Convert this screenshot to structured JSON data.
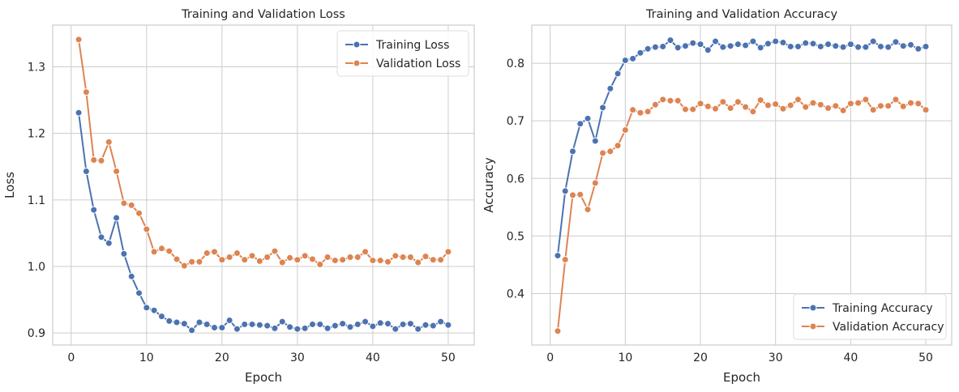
{
  "colors": {
    "training": "#4c72b0",
    "validation": "#dd8452",
    "grid": "#cccccc",
    "frame": "#cccccc"
  },
  "chart_data": [
    {
      "type": "line",
      "title": "Training and Validation Loss",
      "xlabel": "Epoch",
      "ylabel": "Loss",
      "xlim": [
        -2.45,
        53.45
      ],
      "ylim": [
        0.8819,
        1.3627
      ],
      "xticks": [
        0,
        10,
        20,
        30,
        40,
        50
      ],
      "yticks": [
        0.9,
        1.0,
        1.1,
        1.2,
        1.3
      ],
      "ytick_labels": [
        "0.9",
        "1.0",
        "1.1",
        "1.2",
        "1.3"
      ],
      "grid": true,
      "legend": "top-right",
      "x": [
        1,
        2,
        3,
        4,
        5,
        6,
        7,
        8,
        9,
        10,
        11,
        12,
        13,
        14,
        15,
        16,
        17,
        18,
        19,
        20,
        21,
        22,
        23,
        24,
        25,
        26,
        27,
        28,
        29,
        30,
        31,
        32,
        33,
        34,
        35,
        36,
        37,
        38,
        39,
        40,
        41,
        42,
        43,
        44,
        45,
        46,
        47,
        48,
        49,
        50
      ],
      "series": [
        {
          "name": "Training Loss",
          "values": [
            1.231,
            1.143,
            1.085,
            1.044,
            1.035,
            1.073,
            1.019,
            0.985,
            0.96,
            0.938,
            0.934,
            0.925,
            0.918,
            0.916,
            0.914,
            0.904,
            0.916,
            0.913,
            0.908,
            0.908,
            0.919,
            0.906,
            0.913,
            0.913,
            0.912,
            0.911,
            0.907,
            0.917,
            0.909,
            0.906,
            0.907,
            0.913,
            0.913,
            0.907,
            0.911,
            0.914,
            0.909,
            0.913,
            0.917,
            0.91,
            0.915,
            0.914,
            0.906,
            0.913,
            0.914,
            0.906,
            0.912,
            0.911,
            0.917,
            0.912
          ]
        },
        {
          "name": "Validation Loss",
          "values": [
            1.341,
            1.262,
            1.16,
            1.159,
            1.187,
            1.143,
            1.095,
            1.092,
            1.08,
            1.056,
            1.022,
            1.027,
            1.023,
            1.011,
            1.001,
            1.007,
            1.007,
            1.02,
            1.022,
            1.01,
            1.014,
            1.02,
            1.01,
            1.016,
            1.008,
            1.014,
            1.023,
            1.006,
            1.013,
            1.01,
            1.016,
            1.011,
            1.003,
            1.014,
            1.009,
            1.01,
            1.014,
            1.014,
            1.022,
            1.009,
            1.009,
            1.007,
            1.016,
            1.014,
            1.014,
            1.006,
            1.015,
            1.01,
            1.01,
            1.022
          ]
        }
      ]
    },
    {
      "type": "line",
      "title": "Training and Validation Accuracy",
      "xlabel": "Epoch",
      "ylabel": "Accuracy",
      "xlim": [
        -2.45,
        53.45
      ],
      "ylim": [
        0.3107,
        0.8662
      ],
      "xticks": [
        0,
        10,
        20,
        30,
        40,
        50
      ],
      "yticks": [
        0.4,
        0.5,
        0.6,
        0.7,
        0.8
      ],
      "ytick_labels": [
        "0.4",
        "0.5",
        "0.6",
        "0.7",
        "0.8"
      ],
      "grid": true,
      "legend": "bottom-right",
      "x": [
        1,
        2,
        3,
        4,
        5,
        6,
        7,
        8,
        9,
        10,
        11,
        12,
        13,
        14,
        15,
        16,
        17,
        18,
        19,
        20,
        21,
        22,
        23,
        24,
        25,
        26,
        27,
        28,
        29,
        30,
        31,
        32,
        33,
        34,
        35,
        36,
        37,
        38,
        39,
        40,
        41,
        42,
        43,
        44,
        45,
        46,
        47,
        48,
        49,
        50
      ],
      "series": [
        {
          "name": "Training Accuracy",
          "values": [
            0.466,
            0.578,
            0.647,
            0.695,
            0.704,
            0.665,
            0.723,
            0.756,
            0.782,
            0.805,
            0.808,
            0.818,
            0.825,
            0.828,
            0.829,
            0.84,
            0.827,
            0.83,
            0.835,
            0.833,
            0.823,
            0.838,
            0.828,
            0.83,
            0.833,
            0.831,
            0.838,
            0.827,
            0.834,
            0.838,
            0.836,
            0.829,
            0.829,
            0.835,
            0.834,
            0.829,
            0.833,
            0.83,
            0.828,
            0.833,
            0.828,
            0.828,
            0.838,
            0.829,
            0.828,
            0.837,
            0.83,
            0.832,
            0.825,
            0.829
          ]
        },
        {
          "name": "Validation Accuracy",
          "values": [
            0.335,
            0.459,
            0.571,
            0.572,
            0.546,
            0.592,
            0.644,
            0.647,
            0.657,
            0.684,
            0.719,
            0.714,
            0.716,
            0.728,
            0.737,
            0.735,
            0.735,
            0.72,
            0.72,
            0.73,
            0.725,
            0.721,
            0.733,
            0.722,
            0.733,
            0.724,
            0.716,
            0.736,
            0.727,
            0.729,
            0.721,
            0.727,
            0.737,
            0.724,
            0.731,
            0.728,
            0.722,
            0.726,
            0.718,
            0.73,
            0.731,
            0.737,
            0.719,
            0.726,
            0.726,
            0.737,
            0.725,
            0.731,
            0.73,
            0.719
          ]
        }
      ]
    }
  ]
}
